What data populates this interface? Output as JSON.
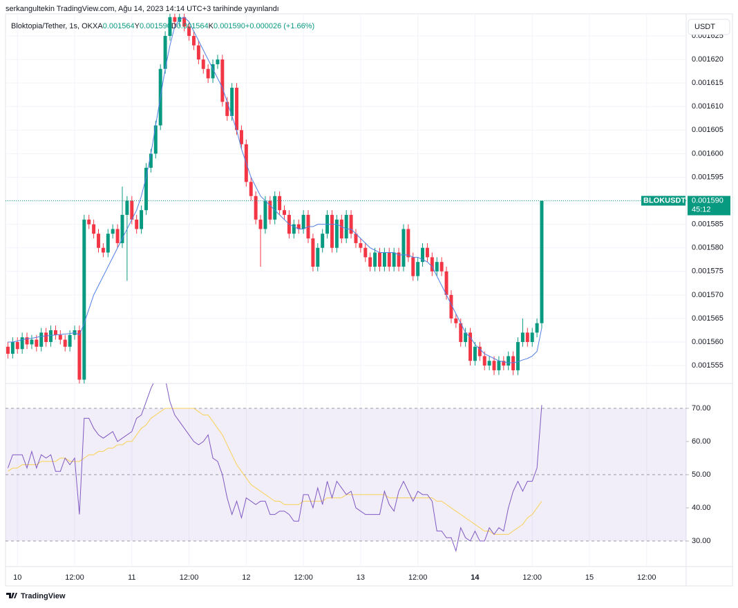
{
  "header": {
    "published": "serkangultekin TradingView.com, Ağu 14, 2023 14:14 UTC+3 tarihinde yayınlandı"
  },
  "footer": {
    "brand": "TradingView"
  },
  "chart_data": [
    {
      "type": "candlestick",
      "title": "Bloktopia/Tether, 1s, OKX",
      "ohlc_legend": [
        [
          "A",
          "0.001564"
        ],
        [
          "Y",
          "0.001590"
        ],
        [
          "D",
          "0.001564"
        ],
        [
          "K",
          "0.001590"
        ]
      ],
      "change": "+0.000026 (+1.66%)",
      "currency": "USDT",
      "symbol": "BLOKUSDT",
      "countdown": "45:12",
      "last_price": {
        "value": 0.00159,
        "label": "0.001590"
      },
      "up_color": "#089981",
      "down_color": "#f23645",
      "x": [
        -2,
        -1,
        0,
        1,
        2,
        3,
        4,
        5,
        6,
        7,
        8,
        9,
        10,
        11,
        12,
        13,
        14,
        15,
        16,
        17,
        18,
        19,
        20,
        21,
        22,
        23,
        24,
        25,
        26,
        27,
        28,
        29,
        30,
        31,
        32,
        33,
        34,
        35,
        36,
        37,
        38,
        39,
        40,
        41,
        42,
        43,
        44,
        45,
        46,
        47,
        48,
        49,
        50,
        51,
        52,
        53,
        54,
        55,
        56,
        57,
        58,
        59,
        60,
        61,
        62,
        63,
        64,
        65,
        66,
        67,
        68,
        69,
        70,
        71,
        72,
        73,
        74,
        75,
        76,
        77,
        78,
        79,
        80,
        81,
        82,
        83,
        84,
        85,
        86,
        87,
        88,
        89,
        90,
        91,
        92,
        93,
        94,
        95,
        96,
        97,
        98,
        99,
        100,
        101,
        102,
        103,
        104,
        105,
        106,
        107,
        108,
        109,
        110
      ],
      "open": [
        0.001559,
        0.0015575,
        0.00156,
        0.0015585,
        0.001561,
        0.0015595,
        0.0015605,
        0.001559,
        0.001562,
        0.00156,
        0.0015625,
        0.0015615,
        0.0015605,
        0.001559,
        0.0015615,
        0.0015625,
        0.001552,
        0.001586,
        0.001585,
        0.001583,
        0.00158,
        0.001579,
        0.001583,
        0.001584,
        0.001581,
        0.001587,
        0.00159,
        0.001586,
        0.001584,
        0.001588,
        0.001597,
        0.0016,
        0.001606,
        0.001618,
        0.001625,
        0.001629,
        0.001628,
        0.001629,
        0.001627,
        0.001625,
        0.001623,
        0.00162,
        0.001618,
        0.001616,
        0.001619,
        0.00162,
        0.001611,
        0.001608,
        0.001614,
        0.001605,
        0.001602,
        0.001594,
        0.001591,
        0.001586,
        0.001584,
        0.00159,
        0.001586,
        0.001591,
        0.001588,
        0.001587,
        0.001583,
        0.001585,
        0.001584,
        0.001587,
        0.001582,
        0.001576,
        0.00158,
        0.001583,
        0.001587,
        0.00158,
        0.001586,
        0.001582,
        0.001587,
        0.001583,
        0.001581,
        0.00158,
        0.001578,
        0.001576,
        0.001579,
        0.001576,
        0.001579,
        0.001576,
        0.001579,
        0.001576,
        0.001584,
        0.001578,
        0.001574,
        0.001577,
        0.00158,
        0.001578,
        0.001575,
        0.001577,
        0.001575,
        0.00157,
        0.001565,
        0.001564,
        0.00156,
        0.001562,
        0.001556,
        0.001559,
        0.001557,
        0.001555,
        0.001556,
        0.001554,
        0.001556,
        0.001555,
        0.001557,
        0.001554,
        0.00156,
        0.001562,
        0.00156,
        0.001562,
        0.001564
      ],
      "high": [
        0.00156,
        0.001561,
        0.001561,
        0.001562,
        0.001562,
        0.0015615,
        0.0015615,
        0.001563,
        0.001563,
        0.0015635,
        0.0015635,
        0.0015625,
        0.0015615,
        0.0015625,
        0.0015635,
        0.0015635,
        0.001587,
        0.001587,
        0.001586,
        0.001584,
        0.001581,
        0.001584,
        0.001585,
        0.001585,
        0.001593,
        0.001591,
        0.001591,
        0.001587,
        0.001589,
        0.001598,
        0.001601,
        0.001607,
        0.001619,
        0.001626,
        0.00163,
        0.00163,
        0.00163,
        0.00163,
        0.001628,
        0.001626,
        0.001624,
        0.001621,
        0.001619,
        0.00162,
        0.001621,
        0.001621,
        0.001612,
        0.001615,
        0.001615,
        0.001606,
        0.001603,
        0.001595,
        0.001592,
        0.001587,
        0.001591,
        0.001591,
        0.001592,
        0.001592,
        0.001589,
        0.001588,
        0.001586,
        0.001586,
        0.001588,
        0.001588,
        0.001583,
        0.001581,
        0.001584,
        0.001588,
        0.001588,
        0.001587,
        0.001587,
        0.001588,
        0.001588,
        0.001584,
        0.001582,
        0.001581,
        0.001579,
        0.00158,
        0.00158,
        0.00158,
        0.00158,
        0.00158,
        0.00158,
        0.001585,
        0.001585,
        0.001579,
        0.001578,
        0.001581,
        0.001581,
        0.001579,
        0.001578,
        0.001578,
        0.001576,
        0.001571,
        0.001566,
        0.001565,
        0.001563,
        0.001563,
        0.00156,
        0.00156,
        0.001558,
        0.001557,
        0.001557,
        0.001557,
        0.001557,
        0.001558,
        0.001558,
        0.001561,
        0.001565,
        0.001563,
        0.001563,
        0.001565,
        0.00159
      ],
      "low": [
        0.0015565,
        0.0015565,
        0.0015575,
        0.0015575,
        0.0015585,
        0.0015585,
        0.001558,
        0.001558,
        0.001559,
        0.001559,
        0.0015605,
        0.0015595,
        0.001558,
        0.001558,
        0.0015605,
        0.001551,
        0.001551,
        0.001584,
        0.001582,
        0.001579,
        0.001578,
        0.001578,
        0.001582,
        0.00158,
        0.00158,
        0.001573,
        0.001585,
        0.001583,
        0.001583,
        0.001587,
        0.001596,
        0.001599,
        0.001605,
        0.001617,
        0.001624,
        0.001627,
        0.001627,
        0.001626,
        0.001624,
        0.001622,
        0.001619,
        0.001617,
        0.001615,
        0.001615,
        0.001618,
        0.00161,
        0.001607,
        0.001607,
        0.001604,
        0.001601,
        0.001593,
        0.00159,
        0.001585,
        0.001576,
        0.001583,
        0.001585,
        0.001585,
        0.001587,
        0.001586,
        0.001582,
        0.001582,
        0.001583,
        0.001583,
        0.001581,
        0.001575,
        0.001575,
        0.001579,
        0.001582,
        0.001579,
        0.001579,
        0.001581,
        0.001581,
        0.001582,
        0.00158,
        0.001579,
        0.001577,
        0.001575,
        0.001575,
        0.001575,
        0.001575,
        0.001575,
        0.001575,
        0.001575,
        0.001575,
        0.001577,
        0.001573,
        0.001573,
        0.001576,
        0.001577,
        0.001574,
        0.001574,
        0.001574,
        0.001569,
        0.001564,
        0.001563,
        0.001559,
        0.001559,
        0.001555,
        0.001555,
        0.001556,
        0.001554,
        0.001554,
        0.001553,
        0.001553,
        0.001554,
        0.001554,
        0.001553,
        0.001553,
        0.001559,
        0.001559,
        0.001559,
        0.001561,
        0.001563
      ],
      "close": [
        0.0015575,
        0.00156,
        0.0015585,
        0.001561,
        0.0015595,
        0.0015605,
        0.001559,
        0.001562,
        0.00156,
        0.0015625,
        0.0015615,
        0.0015605,
        0.001559,
        0.0015615,
        0.0015625,
        0.001552,
        0.001586,
        0.001585,
        0.001583,
        0.00158,
        0.001579,
        0.001583,
        0.001584,
        0.001581,
        0.001587,
        0.00159,
        0.001586,
        0.001584,
        0.001588,
        0.001597,
        0.0016,
        0.001606,
        0.001618,
        0.001625,
        0.001629,
        0.001628,
        0.001629,
        0.001627,
        0.001625,
        0.001623,
        0.00162,
        0.001618,
        0.001616,
        0.001619,
        0.00162,
        0.001611,
        0.001608,
        0.001614,
        0.001605,
        0.001602,
        0.001594,
        0.001591,
        0.001586,
        0.001584,
        0.00159,
        0.001586,
        0.001591,
        0.001588,
        0.001587,
        0.001583,
        0.001585,
        0.001584,
        0.001587,
        0.001582,
        0.001576,
        0.00158,
        0.001583,
        0.001587,
        0.00158,
        0.001586,
        0.001582,
        0.001587,
        0.001583,
        0.001581,
        0.00158,
        0.001578,
        0.001576,
        0.001579,
        0.001576,
        0.001579,
        0.001576,
        0.001579,
        0.001576,
        0.001584,
        0.001578,
        0.001574,
        0.001577,
        0.00158,
        0.001578,
        0.001575,
        0.001577,
        0.001575,
        0.00157,
        0.001565,
        0.001564,
        0.00156,
        0.001562,
        0.001556,
        0.001559,
        0.001557,
        0.001555,
        0.001556,
        0.001554,
        0.001556,
        0.001555,
        0.001557,
        0.001554,
        0.00156,
        0.001562,
        0.00156,
        0.001562,
        0.001564,
        0.00159
      ],
      "series": [
        {
          "color": "#4f7fe3",
          "values": [
            0.00156,
            0.00156,
            0.0015602,
            0.0015605,
            0.0015607,
            0.0015608,
            0.001561,
            0.0015612,
            0.0015613,
            0.0015614,
            0.0015615,
            0.0015616,
            0.0015617,
            0.0015618,
            0.001562,
            0.0015615,
            0.001564,
            0.001567,
            0.00157,
            0.001572,
            0.001574,
            0.001576,
            0.001578,
            0.00158,
            0.001582,
            0.001584,
            0.001586,
            0.001588,
            0.001591,
            0.001595,
            0.0016,
            0.001606,
            0.001612,
            0.001618,
            0.001623,
            0.001627,
            0.0016285,
            0.001629,
            0.001628,
            0.001626,
            0.001624,
            0.001622,
            0.00162,
            0.001618,
            0.001616,
            0.001614,
            0.001611,
            0.001608,
            0.001605,
            0.001601,
            0.001598,
            0.001595,
            0.001593,
            0.001591,
            0.00159,
            0.001589,
            0.001588,
            0.001587,
            0.001586,
            0.001585,
            0.0015845,
            0.001584,
            0.001584,
            0.0015845,
            0.0015845,
            0.001585,
            0.001585,
            0.001585,
            0.001585,
            0.001585,
            0.0015845,
            0.001584,
            0.001584,
            0.001583,
            0.001582,
            0.001581,
            0.00158,
            0.0015795,
            0.001579,
            0.001579,
            0.001579,
            0.001579,
            0.0015785,
            0.0015785,
            0.0015785,
            0.001578,
            0.001578,
            0.0015775,
            0.001577,
            0.001576,
            0.001574,
            0.001572,
            0.00157,
            0.001568,
            0.001566,
            0.001564,
            0.001562,
            0.001561,
            0.0015595,
            0.0015585,
            0.0015575,
            0.001557,
            0.0015565,
            0.001556,
            0.0015558,
            0.0015556,
            0.0015556,
            0.0015558,
            0.0015562,
            0.0015565,
            0.001557,
            0.001558,
            0.001563
          ]
        }
      ],
      "xlim": [
        -2.5,
        140.3
      ],
      "xticks": [
        {
          "value": 0,
          "label": "10"
        },
        {
          "value": 12,
          "label": "12:00"
        },
        {
          "value": 24,
          "label": "11"
        },
        {
          "value": 36,
          "label": "12:00"
        },
        {
          "value": 48,
          "label": "12"
        },
        {
          "value": 60,
          "label": "12:00"
        },
        {
          "value": 72,
          "label": "13"
        },
        {
          "value": 84,
          "label": "12:00"
        },
        {
          "value": 96,
          "label": "14",
          "bold": true
        },
        {
          "value": 108,
          "label": "12:00"
        },
        {
          "value": 120,
          "label": "15"
        },
        {
          "value": 132,
          "label": "12:00"
        }
      ],
      "ylim": [
        0.0015512,
        0.0016297
      ],
      "yticks": [
        0.001555,
        {
          "value": 0.00156,
          "label": "0.001560"
        },
        0.001565,
        {
          "value": 0.00157,
          "label": "0.001570"
        },
        0.001575,
        {
          "value": 0.00158,
          "label": "0.001580"
        },
        0.001585,
        {
          "value": 0.00159,
          "label": "0.001590"
        },
        0.001595,
        {
          "value": 0.0016,
          "label": "0.001600"
        },
        0.001605,
        {
          "value": 0.00161,
          "label": "0.001610"
        },
        0.001615,
        {
          "value": 0.00162,
          "label": "0.001620"
        },
        0.001625
      ],
      "grid": true
    },
    {
      "type": "line",
      "series": [
        {
          "color": "#7e57c2",
          "values": [
            52,
            56,
            56,
            56,
            52,
            57,
            52,
            56,
            55,
            56,
            51,
            51,
            55,
            53,
            55,
            38,
            67,
            67,
            64,
            62,
            61,
            62,
            63,
            60,
            61,
            62,
            63,
            67,
            68,
            72,
            76,
            79,
            78,
            79,
            72,
            68,
            66,
            64,
            62,
            60,
            59,
            60,
            62,
            55,
            54,
            50,
            43,
            38,
            42,
            37,
            43,
            42,
            41,
            42,
            42,
            38,
            38,
            39,
            39,
            38,
            36,
            36,
            44,
            44,
            40,
            46,
            41,
            48,
            43,
            48,
            46,
            44,
            45,
            40,
            39,
            38,
            38,
            38,
            38,
            45,
            41,
            39,
            45,
            48,
            45,
            42,
            45,
            44,
            44,
            42,
            33,
            33,
            31,
            31,
            27,
            34,
            31,
            30,
            33,
            30,
            30,
            34,
            32,
            34,
            33,
            40,
            45,
            48,
            45,
            48,
            48,
            52,
            71
          ]
        },
        {
          "color": "#f7d154",
          "values": [
            51,
            52,
            52,
            53,
            53,
            53,
            53,
            54,
            54,
            54,
            54,
            55,
            55,
            54,
            54,
            54,
            55,
            56,
            56,
            57,
            57,
            58,
            58,
            59,
            59,
            60,
            60,
            62,
            64,
            65,
            67,
            68,
            69,
            70,
            70,
            70,
            70,
            70,
            70,
            70,
            69,
            68,
            68,
            66,
            64,
            62,
            59,
            56,
            53,
            51,
            49,
            47,
            46,
            45,
            44,
            43,
            42,
            42,
            41,
            41,
            41,
            41,
            42,
            42,
            42,
            42,
            42,
            43,
            43,
            43,
            43,
            44,
            44,
            44,
            44,
            44,
            44,
            44,
            44,
            44,
            43,
            43,
            43,
            43,
            43,
            43,
            43,
            43,
            43,
            43,
            42,
            42,
            41,
            40,
            39,
            38,
            37,
            36,
            35,
            34,
            33,
            33,
            32,
            32,
            32,
            32,
            33,
            34,
            35,
            37,
            38,
            40,
            42
          ]
        }
      ],
      "ylim": [
        22.3,
        77.5
      ],
      "yticks": [
        {
          "value": 70,
          "label": "70.00"
        },
        {
          "value": 60,
          "label": "60.00"
        },
        {
          "value": 50,
          "label": "50.00"
        },
        {
          "value": 40,
          "label": "40.00"
        },
        {
          "value": 30,
          "label": "30.00"
        }
      ],
      "band": [
        30,
        70
      ],
      "band_color": "#7e57c2",
      "levels": [
        70,
        50,
        30
      ]
    }
  ]
}
